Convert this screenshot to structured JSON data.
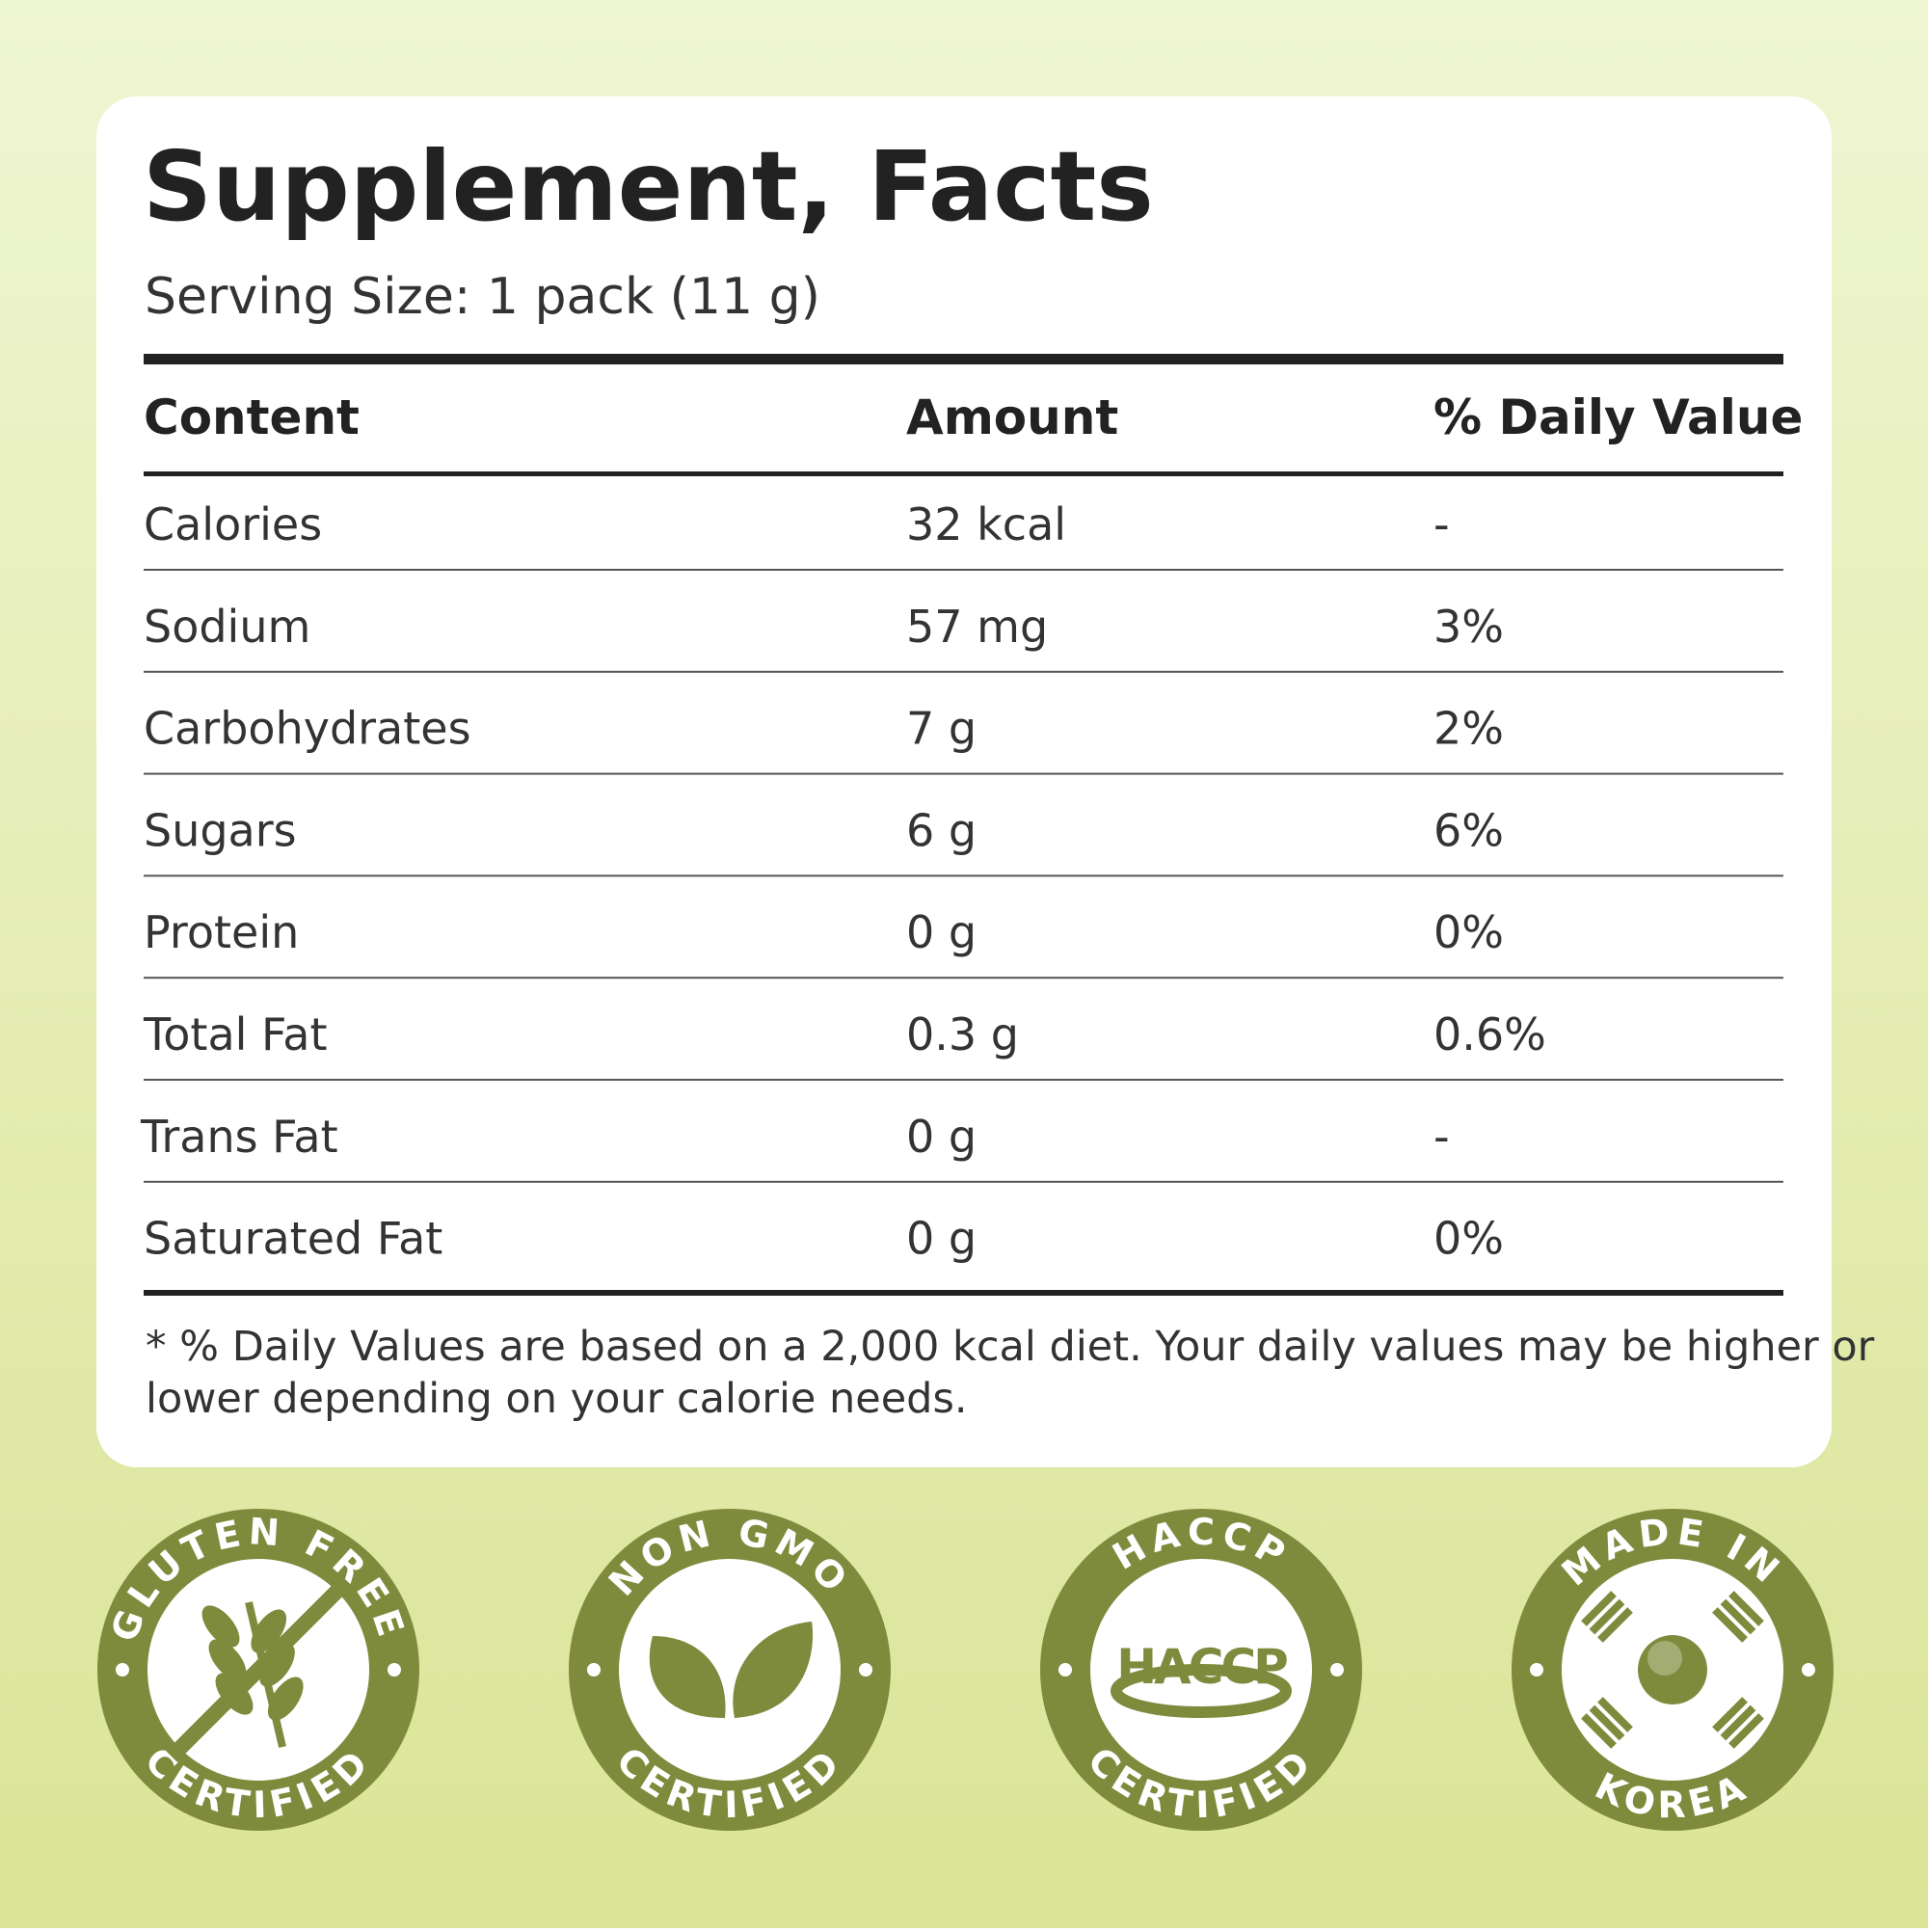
{
  "header": {
    "title": "Supplement, Facts",
    "serving": "Serving Size: 1 pack (11 g)"
  },
  "table": {
    "columns": [
      "Content",
      "Amount",
      "% Daily Value"
    ],
    "rows": [
      [
        "Calories",
        "32 kcal",
        "-"
      ],
      [
        "Sodium",
        "57 mg",
        "3%"
      ],
      [
        "Carbohydrates",
        "7 g",
        "2%"
      ],
      [
        "Sugars",
        "6 g",
        "6%"
      ],
      [
        "Protein",
        "0 g",
        "0%"
      ],
      [
        "Total Fat",
        "0.3 g",
        "0.6%"
      ],
      [
        "Trans Fat",
        "0 g",
        "-"
      ],
      [
        "Saturated Fat",
        "0 g",
        "0%"
      ]
    ]
  },
  "footnote": [
    "* % Daily Values are based on a 2,000 kcal diet. Your daily values may be higher or",
    "lower depending on your calorie needs."
  ],
  "badges": [
    {
      "top": "GLUTEN FREE",
      "bottom": "CERTIFIED"
    },
    {
      "top": "NON GMO",
      "bottom": "CERTIFIED"
    },
    {
      "top": "HACCP",
      "bottom": "CERTIFIED",
      "logo": "HACCP"
    },
    {
      "top": "MADE IN",
      "bottom": "KOREA"
    }
  ]
}
